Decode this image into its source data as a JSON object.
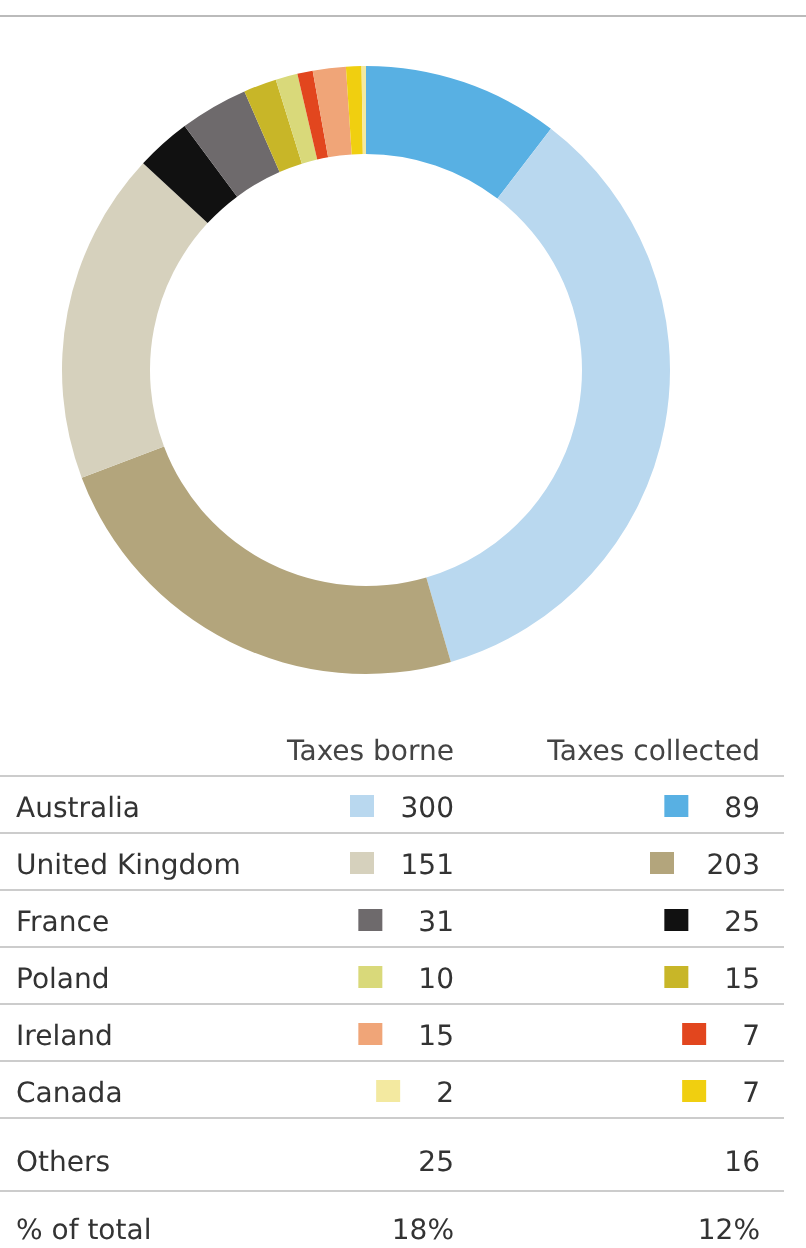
{
  "chart_data": {
    "type": "donut",
    "categories": [
      "89",
      "300",
      "203",
      "151",
      "25",
      "31",
      "15",
      "10",
      "7",
      "15",
      "7",
      "2"
    ],
    "values": [
      89,
      300,
      203,
      151,
      25,
      31,
      15,
      10,
      7,
      15,
      7,
      2
    ],
    "colors": [
      "#58b0e3",
      "#b9d8ef",
      "#b3a57c",
      "#d6d1bd",
      "#111111",
      "#6e6a6c",
      "#c8b628",
      "#d9d97a",
      "#e2461e",
      "#f0a578",
      "#f0cf10",
      "#f3e9a0"
    ],
    "legend": "bottom",
    "annotations": [
      "Taxes borne",
      "Taxes collected",
      "Australia",
      "United Kingdom",
      "France",
      "Poland",
      "Ireland",
      "Canada",
      "Others",
      "25",
      "16",
      "% of total",
      "18%",
      "12%"
    ]
  }
}
